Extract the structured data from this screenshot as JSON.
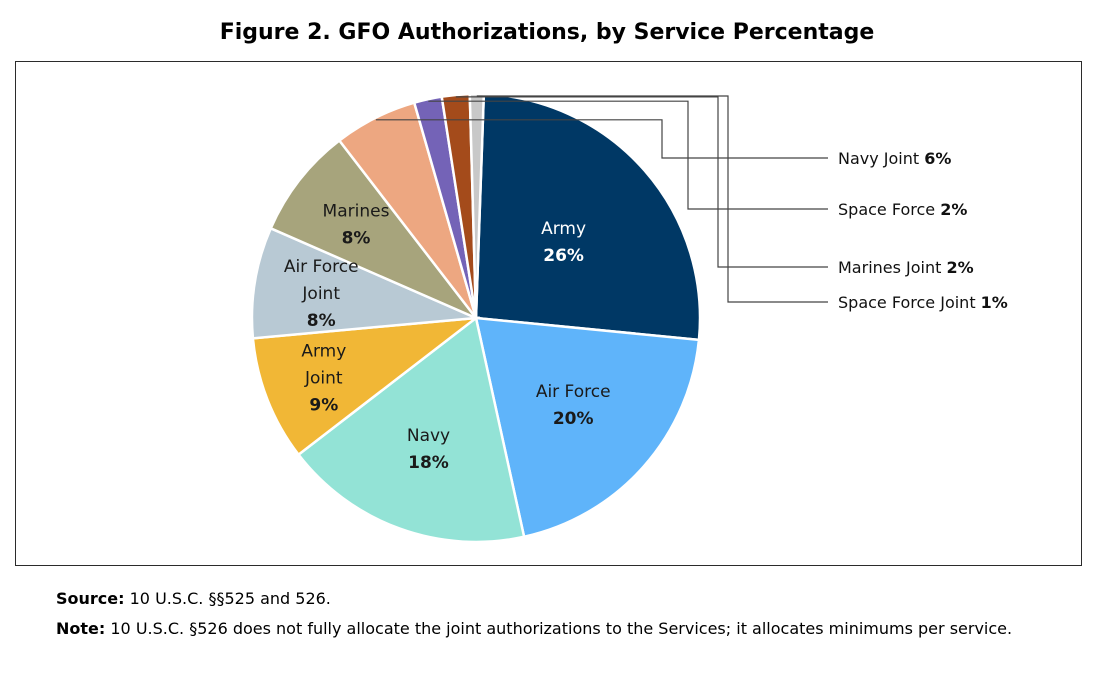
{
  "figure": {
    "title": "Figure 2. GFO Authorizations, by Service Percentage"
  },
  "chart_data": {
    "type": "pie",
    "title": "Figure 2. GFO Authorizations, by Service Percentage",
    "slices": [
      {
        "name": "Army",
        "label_lines": [
          "Army"
        ],
        "value": 26,
        "value_label": "26%",
        "color": "#003865",
        "text_color": "#ffffff",
        "placement": "inside"
      },
      {
        "name": "Air Force",
        "label_lines": [
          "Air Force"
        ],
        "value": 20,
        "value_label": "20%",
        "color": "#5fb4fa",
        "text_color": "#1a1a1a",
        "placement": "inside"
      },
      {
        "name": "Navy",
        "label_lines": [
          "Navy"
        ],
        "value": 18,
        "value_label": "18%",
        "color": "#93e3d6",
        "text_color": "#1a1a1a",
        "placement": "inside"
      },
      {
        "name": "Army Joint",
        "label_lines": [
          "Army",
          "Joint"
        ],
        "value": 9,
        "value_label": "9%",
        "color": "#f1b736",
        "text_color": "#1a1a1a",
        "placement": "inside"
      },
      {
        "name": "Air Force Joint",
        "label_lines": [
          "Air Force",
          "Joint"
        ],
        "value": 8,
        "value_label": "8%",
        "color": "#b8c9d4",
        "text_color": "#1a1a1a",
        "placement": "inside"
      },
      {
        "name": "Marines",
        "label_lines": [
          "Marines"
        ],
        "value": 8,
        "value_label": "8%",
        "color": "#a7a47c",
        "text_color": "#1a1a1a",
        "placement": "inside"
      },
      {
        "name": "Navy Joint",
        "label_lines": [
          "Navy Joint"
        ],
        "value": 6,
        "value_label": "6%",
        "color": "#eda781",
        "text_color": "#1a1a1a",
        "placement": "callout"
      },
      {
        "name": "Space Force",
        "label_lines": [
          "Space Force"
        ],
        "value": 2,
        "value_label": "2%",
        "color": "#7463b7",
        "text_color": "#1a1a1a",
        "placement": "callout"
      },
      {
        "name": "Marines Joint",
        "label_lines": [
          "Marines Joint"
        ],
        "value": 2,
        "value_label": "2%",
        "color": "#a44b1b",
        "text_color": "#1a1a1a",
        "placement": "callout"
      },
      {
        "name": "Space Force Joint",
        "label_lines": [
          "Space Force Joint"
        ],
        "value": 1,
        "value_label": "1%",
        "color": "#c8c8c8",
        "text_color": "#1a1a1a",
        "placement": "callout"
      }
    ]
  },
  "notes": {
    "source_label": "Source:",
    "source_text": "10 U.S.C. §§525 and 526.",
    "note_label": "Note:",
    "note_text": "10 U.S.C. §526 does not fully allocate the joint authorizations to the Services; it allocates minimums per service."
  }
}
